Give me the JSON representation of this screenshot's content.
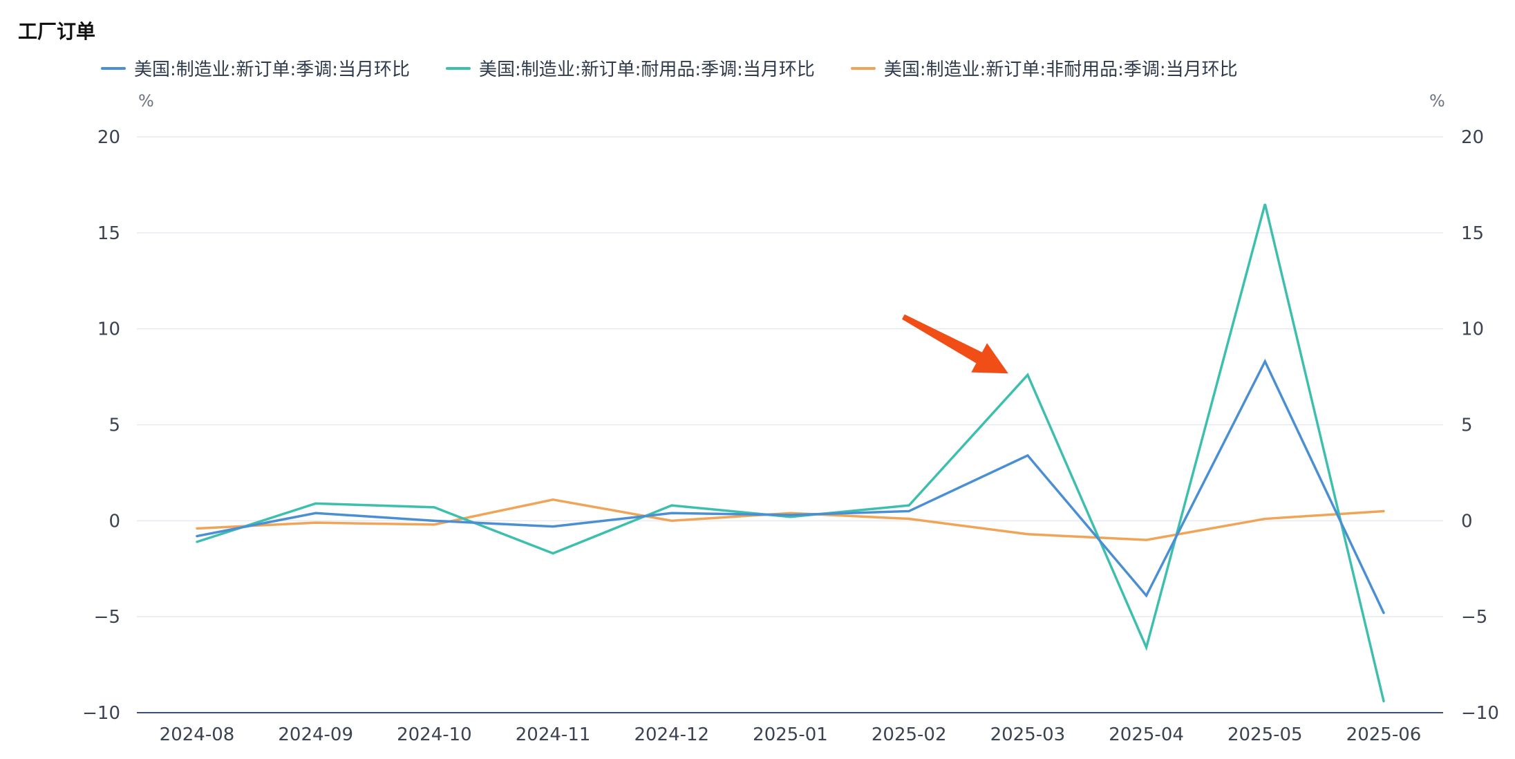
{
  "header": {
    "title": "工厂订单"
  },
  "chart_data": {
    "type": "line",
    "categories": [
      "2024-08",
      "2024-09",
      "2024-10",
      "2024-11",
      "2024-12",
      "2025-01",
      "2025-02",
      "2025-03",
      "2025-04",
      "2025-05",
      "2025-06"
    ],
    "series": [
      {
        "name": "美国:制造业:新订单:季调:当月环比",
        "color": "#4a8fd4",
        "values": [
          -0.8,
          0.4,
          0.0,
          -0.3,
          0.4,
          0.3,
          0.5,
          3.4,
          -3.9,
          8.3,
          -4.8
        ]
      },
      {
        "name": "美国:制造业:新订单:耐用品:季调:当月环比",
        "color": "#3dbfae",
        "values": [
          -1.1,
          0.9,
          0.7,
          -1.7,
          0.8,
          0.2,
          0.8,
          7.6,
          -6.6,
          16.5,
          -9.4
        ]
      },
      {
        "name": "美国:制造业:新订单:非耐用品:季调:当月环比",
        "color": "#f0a457",
        "values": [
          -0.4,
          -0.1,
          -0.2,
          1.1,
          0.0,
          0.4,
          0.1,
          -0.7,
          -1.0,
          0.1,
          0.5
        ]
      }
    ],
    "y_ticks": [
      "20",
      "15",
      "10",
      "5",
      "0",
      "−5",
      "−10"
    ],
    "y_tick_values": [
      20,
      15,
      10,
      5,
      0,
      -5,
      -10
    ],
    "ylim": [
      -10,
      20
    ],
    "y_unit_left": "%",
    "y_unit_right": "%",
    "grid": true,
    "legend_position": "top",
    "annotation": {
      "type": "arrow",
      "color": "#f04e16",
      "points_to": "2025-03"
    }
  }
}
